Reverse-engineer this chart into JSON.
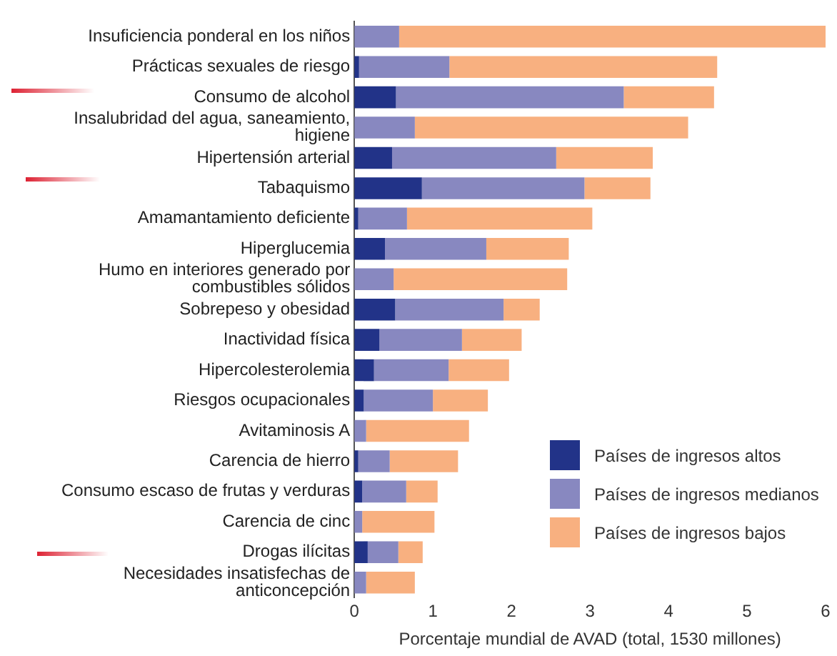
{
  "chart_data": {
    "type": "bar",
    "orientation": "horizontal",
    "stacked": true,
    "xlabel": "Porcentaje mundial de AVAD (total, 1530 millones)",
    "categories": [
      "Insuficiencia ponderal en los niños",
      "Prácticas sexuales de riesgo",
      "Consumo de alcohol",
      "Insalubridad del agua, saneamiento, higiene",
      "Hipertensión arterial",
      "Tabaquismo",
      "Amamantamiento deficiente",
      "Hiperglucemia",
      "Humo en interiores generado por combustibles sólidos",
      "Sobrepeso y obesidad",
      "Inactividad física",
      "Hipercolesterolemia",
      "Riesgos ocupacionales",
      "Avitaminosis A",
      "Carencia de hierro",
      "Consumo escaso de frutas y verduras",
      "Carencia de cinc",
      "Drogas ilícitas",
      "Necesidades insatisfechas de anticoncepción"
    ],
    "series": [
      {
        "name": "Países de ingresos altos",
        "color": "#223388",
        "values": [
          0,
          0.06,
          0.53,
          0,
          0.48,
          0.86,
          0.05,
          0.39,
          0,
          0.52,
          0.32,
          0.25,
          0.12,
          0,
          0.05,
          0.1,
          0,
          0.17,
          0
        ]
      },
      {
        "name": "Países de ingresos medianos",
        "color": "#8888c0",
        "values": [
          0.57,
          1.15,
          2.9,
          0.77,
          2.09,
          2.07,
          0.62,
          1.29,
          0.5,
          1.38,
          1.05,
          0.95,
          0.88,
          0.15,
          0.4,
          0.56,
          0.1,
          0.39,
          0.15
        ]
      },
      {
        "name": "Países de ingresos bajos",
        "color": "#f8b080",
        "values": [
          5.43,
          3.41,
          1.15,
          3.48,
          1.23,
          0.84,
          2.36,
          1.05,
          2.21,
          0.46,
          0.76,
          0.77,
          0.7,
          1.31,
          0.87,
          0.4,
          0.92,
          0.31,
          0.62
        ]
      }
    ],
    "xlim": [
      0,
      6
    ],
    "xticks": [
      0,
      1,
      2,
      3,
      4,
      5,
      6
    ],
    "grid": false,
    "legend": "bottom right"
  }
}
